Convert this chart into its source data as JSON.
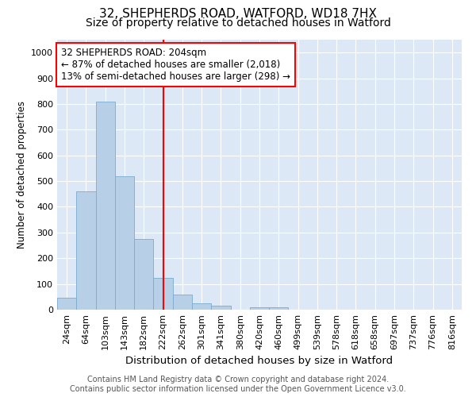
{
  "title1": "32, SHEPHERDS ROAD, WATFORD, WD18 7HX",
  "title2": "Size of property relative to detached houses in Watford",
  "xlabel": "Distribution of detached houses by size in Watford",
  "ylabel": "Number of detached properties",
  "categories": [
    "24sqm",
    "64sqm",
    "103sqm",
    "143sqm",
    "182sqm",
    "222sqm",
    "262sqm",
    "301sqm",
    "341sqm",
    "380sqm",
    "420sqm",
    "460sqm",
    "499sqm",
    "539sqm",
    "578sqm",
    "618sqm",
    "658sqm",
    "697sqm",
    "737sqm",
    "776sqm",
    "816sqm"
  ],
  "values": [
    47,
    460,
    810,
    520,
    275,
    125,
    58,
    25,
    15,
    0,
    10,
    10,
    0,
    0,
    0,
    0,
    0,
    0,
    0,
    0,
    0
  ],
  "bar_color": "#b8cfe8",
  "bar_edge_color": "#7aaad0",
  "vline_x": 5,
  "vline_color": "red",
  "annotation_text": "32 SHEPHERDS ROAD: 204sqm\n← 87% of detached houses are smaller (2,018)\n13% of semi-detached houses are larger (298) →",
  "annotation_box_color": "white",
  "annotation_box_edge_color": "red",
  "ylim": [
    0,
    1050
  ],
  "yticks": [
    0,
    100,
    200,
    300,
    400,
    500,
    600,
    700,
    800,
    900,
    1000
  ],
  "plot_background": "#dce8f5",
  "footer1": "Contains HM Land Registry data © Crown copyright and database right 2024.",
  "footer2": "Contains public sector information licensed under the Open Government Licence v3.0.",
  "title1_fontsize": 11,
  "title2_fontsize": 10,
  "xlabel_fontsize": 9.5,
  "ylabel_fontsize": 8.5,
  "tick_fontsize": 8,
  "footer_fontsize": 7,
  "ann_fontsize": 8.5
}
